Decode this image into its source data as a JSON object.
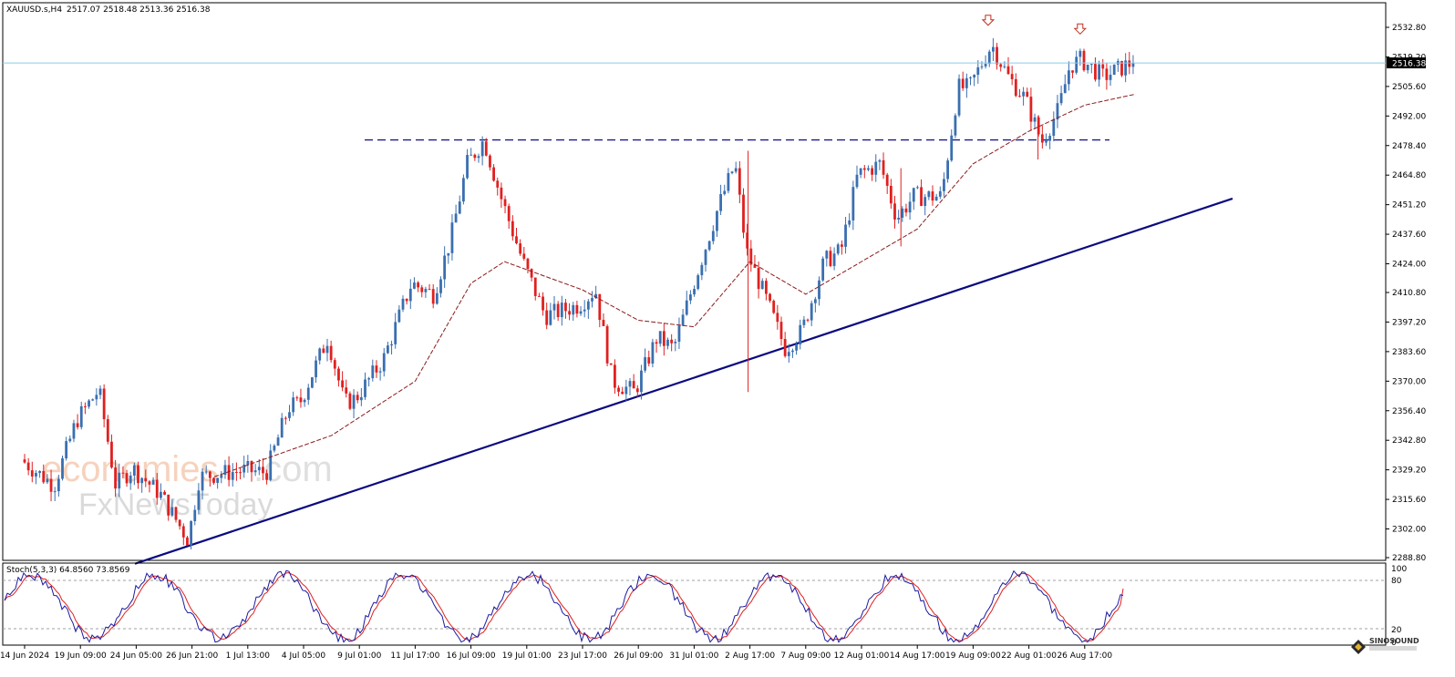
{
  "header": {
    "symbol": "XAUUSD.s,H4",
    "ohlc": "2517.07 2518.48 2513.36 2516.38"
  },
  "price_label": "2516.38",
  "stoch_label": "Stoch(5,3,3) 64.8560 73.8569",
  "stoch_levels": [
    "100",
    "80",
    "20",
    "0"
  ],
  "y_ticks": [
    "2532.80",
    "2519.20",
    "2505.60",
    "2492.00",
    "2478.40",
    "2464.80",
    "2451.20",
    "2437.60",
    "2424.00",
    "2410.80",
    "2397.20",
    "2383.60",
    "2370.00",
    "2356.40",
    "2342.80",
    "2329.20",
    "2315.60",
    "2302.00",
    "2288.80"
  ],
  "x_ticks": [
    "14 Jun 2024",
    "19 Jun 09:00",
    "24 Jun 05:00",
    "26 Jun 21:00",
    "1 Jul 13:00",
    "4 Jul 05:00",
    "9 Jul 01:00",
    "11 Jul 17:00",
    "16 Jul 09:00",
    "19 Jul 01:00",
    "23 Jul 17:00",
    "26 Jul 09:00",
    "31 Jul 01:00",
    "2 Aug 17:00",
    "7 Aug 09:00",
    "12 Aug 01:00",
    "14 Aug 17:00",
    "19 Aug 09:00",
    "22 Aug 01:00",
    "26 Aug 17:00"
  ],
  "watermark": {
    "line1a": "economies",
    "line1b": ".com",
    "line2": "FxNewsToday"
  },
  "logo_text": "SINOSOUND",
  "colors": {
    "bull": "#3a6fb0",
    "bear": "#e02020",
    "ma": "#8b1a1a",
    "trend": "#0a0a80",
    "resistance": "#1a1a8a",
    "price_line": "#87ceeb",
    "stoch_main": "#1a1aa0",
    "stoch_signal": "#e02020"
  },
  "chart_data": {
    "type": "candlestick",
    "title": "XAUUSD.s,H4",
    "ylim": [
      2287,
      2540
    ],
    "anchor_points": [
      {
        "x": "14 Jun 2024",
        "y": 2334
      },
      {
        "x": "17 Jun",
        "y": 2322
      },
      {
        "x": "19 Jun 09:00",
        "y": 2352
      },
      {
        "x": "20 Jun",
        "y": 2366
      },
      {
        "x": "21 Jun",
        "y": 2322
      },
      {
        "x": "24 Jun 05:00",
        "y": 2330
      },
      {
        "x": "25 Jun",
        "y": 2318
      },
      {
        "x": "26 Jun 21:00",
        "y": 2297
      },
      {
        "x": "27 Jun",
        "y": 2326
      },
      {
        "x": "1 Jul 13:00",
        "y": 2329
      },
      {
        "x": "2 Jul",
        "y": 2328
      },
      {
        "x": "3 Jul",
        "y": 2358
      },
      {
        "x": "4 Jul 05:00",
        "y": 2360
      },
      {
        "x": "5 Jul",
        "y": 2390
      },
      {
        "x": "8 Jul",
        "y": 2360
      },
      {
        "x": "9 Jul 01:00",
        "y": 2362
      },
      {
        "x": "10 Jul",
        "y": 2380
      },
      {
        "x": "11 Jul 17:00",
        "y": 2415
      },
      {
        "x": "12 Jul",
        "y": 2410
      },
      {
        "x": "15 Jul",
        "y": 2435
      },
      {
        "x": "16 Jul 09:00",
        "y": 2470
      },
      {
        "x": "17 Jul",
        "y": 2481
      },
      {
        "x": "18 Jul",
        "y": 2455
      },
      {
        "x": "19 Jul 01:00",
        "y": 2425
      },
      {
        "x": "22 Jul",
        "y": 2400
      },
      {
        "x": "23 Jul 17:00",
        "y": 2405
      },
      {
        "x": "24 Jul",
        "y": 2412
      },
      {
        "x": "25 Jul",
        "y": 2370
      },
      {
        "x": "26 Jul 09:00",
        "y": 2365
      },
      {
        "x": "29 Jul",
        "y": 2390
      },
      {
        "x": "30 Jul",
        "y": 2385
      },
      {
        "x": "31 Jul 01:00",
        "y": 2410
      },
      {
        "x": "1 Aug",
        "y": 2450
      },
      {
        "x": "1 Aug 20:00",
        "y": 2470
      },
      {
        "x": "2 Aug 17:00",
        "y": 2430
      },
      {
        "x": "5 Aug",
        "y": 2405
      },
      {
        "x": "6 Aug",
        "y": 2385
      },
      {
        "x": "7 Aug 09:00",
        "y": 2393
      },
      {
        "x": "8 Aug",
        "y": 2425
      },
      {
        "x": "9 Aug",
        "y": 2430
      },
      {
        "x": "12 Aug 01:00",
        "y": 2465
      },
      {
        "x": "13 Aug",
        "y": 2470
      },
      {
        "x": "14 Aug",
        "y": 2445
      },
      {
        "x": "14 Aug 17:00",
        "y": 2455
      },
      {
        "x": "15 Aug",
        "y": 2455
      },
      {
        "x": "16 Aug",
        "y": 2505
      },
      {
        "x": "19 Aug 09:00",
        "y": 2505
      },
      {
        "x": "20 Aug",
        "y": 2525
      },
      {
        "x": "21 Aug",
        "y": 2510
      },
      {
        "x": "22 Aug 01:00",
        "y": 2500
      },
      {
        "x": "22 Aug 12:00",
        "y": 2480
      },
      {
        "x": "23 Aug",
        "y": 2495
      },
      {
        "x": "26 Aug",
        "y": 2515
      },
      {
        "x": "26 Aug 17:00",
        "y": 2518
      },
      {
        "x": "27 Aug",
        "y": 2510
      },
      {
        "x": "28 Aug",
        "y": 2516.38
      }
    ],
    "resistance_level": 2481,
    "trendline": [
      {
        "x": "24 Jun 05:00",
        "y": 2286
      },
      {
        "x": "28 Aug",
        "y": 2454
      }
    ],
    "ma_anchor_points": [
      {
        "x": "28 Jun",
        "y": 2326
      },
      {
        "x": "5 Jul",
        "y": 2345
      },
      {
        "x": "11 Jul 17:00",
        "y": 2370
      },
      {
        "x": "16 Jul 09:00",
        "y": 2415
      },
      {
        "x": "18 Jul",
        "y": 2425
      },
      {
        "x": "23 Jul 17:00",
        "y": 2412
      },
      {
        "x": "26 Jul 09:00",
        "y": 2398
      },
      {
        "x": "31 Jul 01:00",
        "y": 2395
      },
      {
        "x": "2 Aug 17:00",
        "y": 2425
      },
      {
        "x": "7 Aug 09:00",
        "y": 2410
      },
      {
        "x": "12 Aug 01:00",
        "y": 2425
      },
      {
        "x": "14 Aug 17:00",
        "y": 2440
      },
      {
        "x": "19 Aug 09:00",
        "y": 2470
      },
      {
        "x": "22 Aug 01:00",
        "y": 2485
      },
      {
        "x": "26 Aug 17:00",
        "y": 2497
      },
      {
        "x": "28 Aug",
        "y": 2502
      }
    ],
    "arrows": [
      {
        "x": "20 Aug",
        "y": 2535
      },
      {
        "x": "26 Aug 17:00",
        "y": 2531
      }
    ],
    "stochastic": {
      "k": 64.856,
      "d": 73.8569,
      "levels": [
        80,
        20
      ]
    }
  }
}
